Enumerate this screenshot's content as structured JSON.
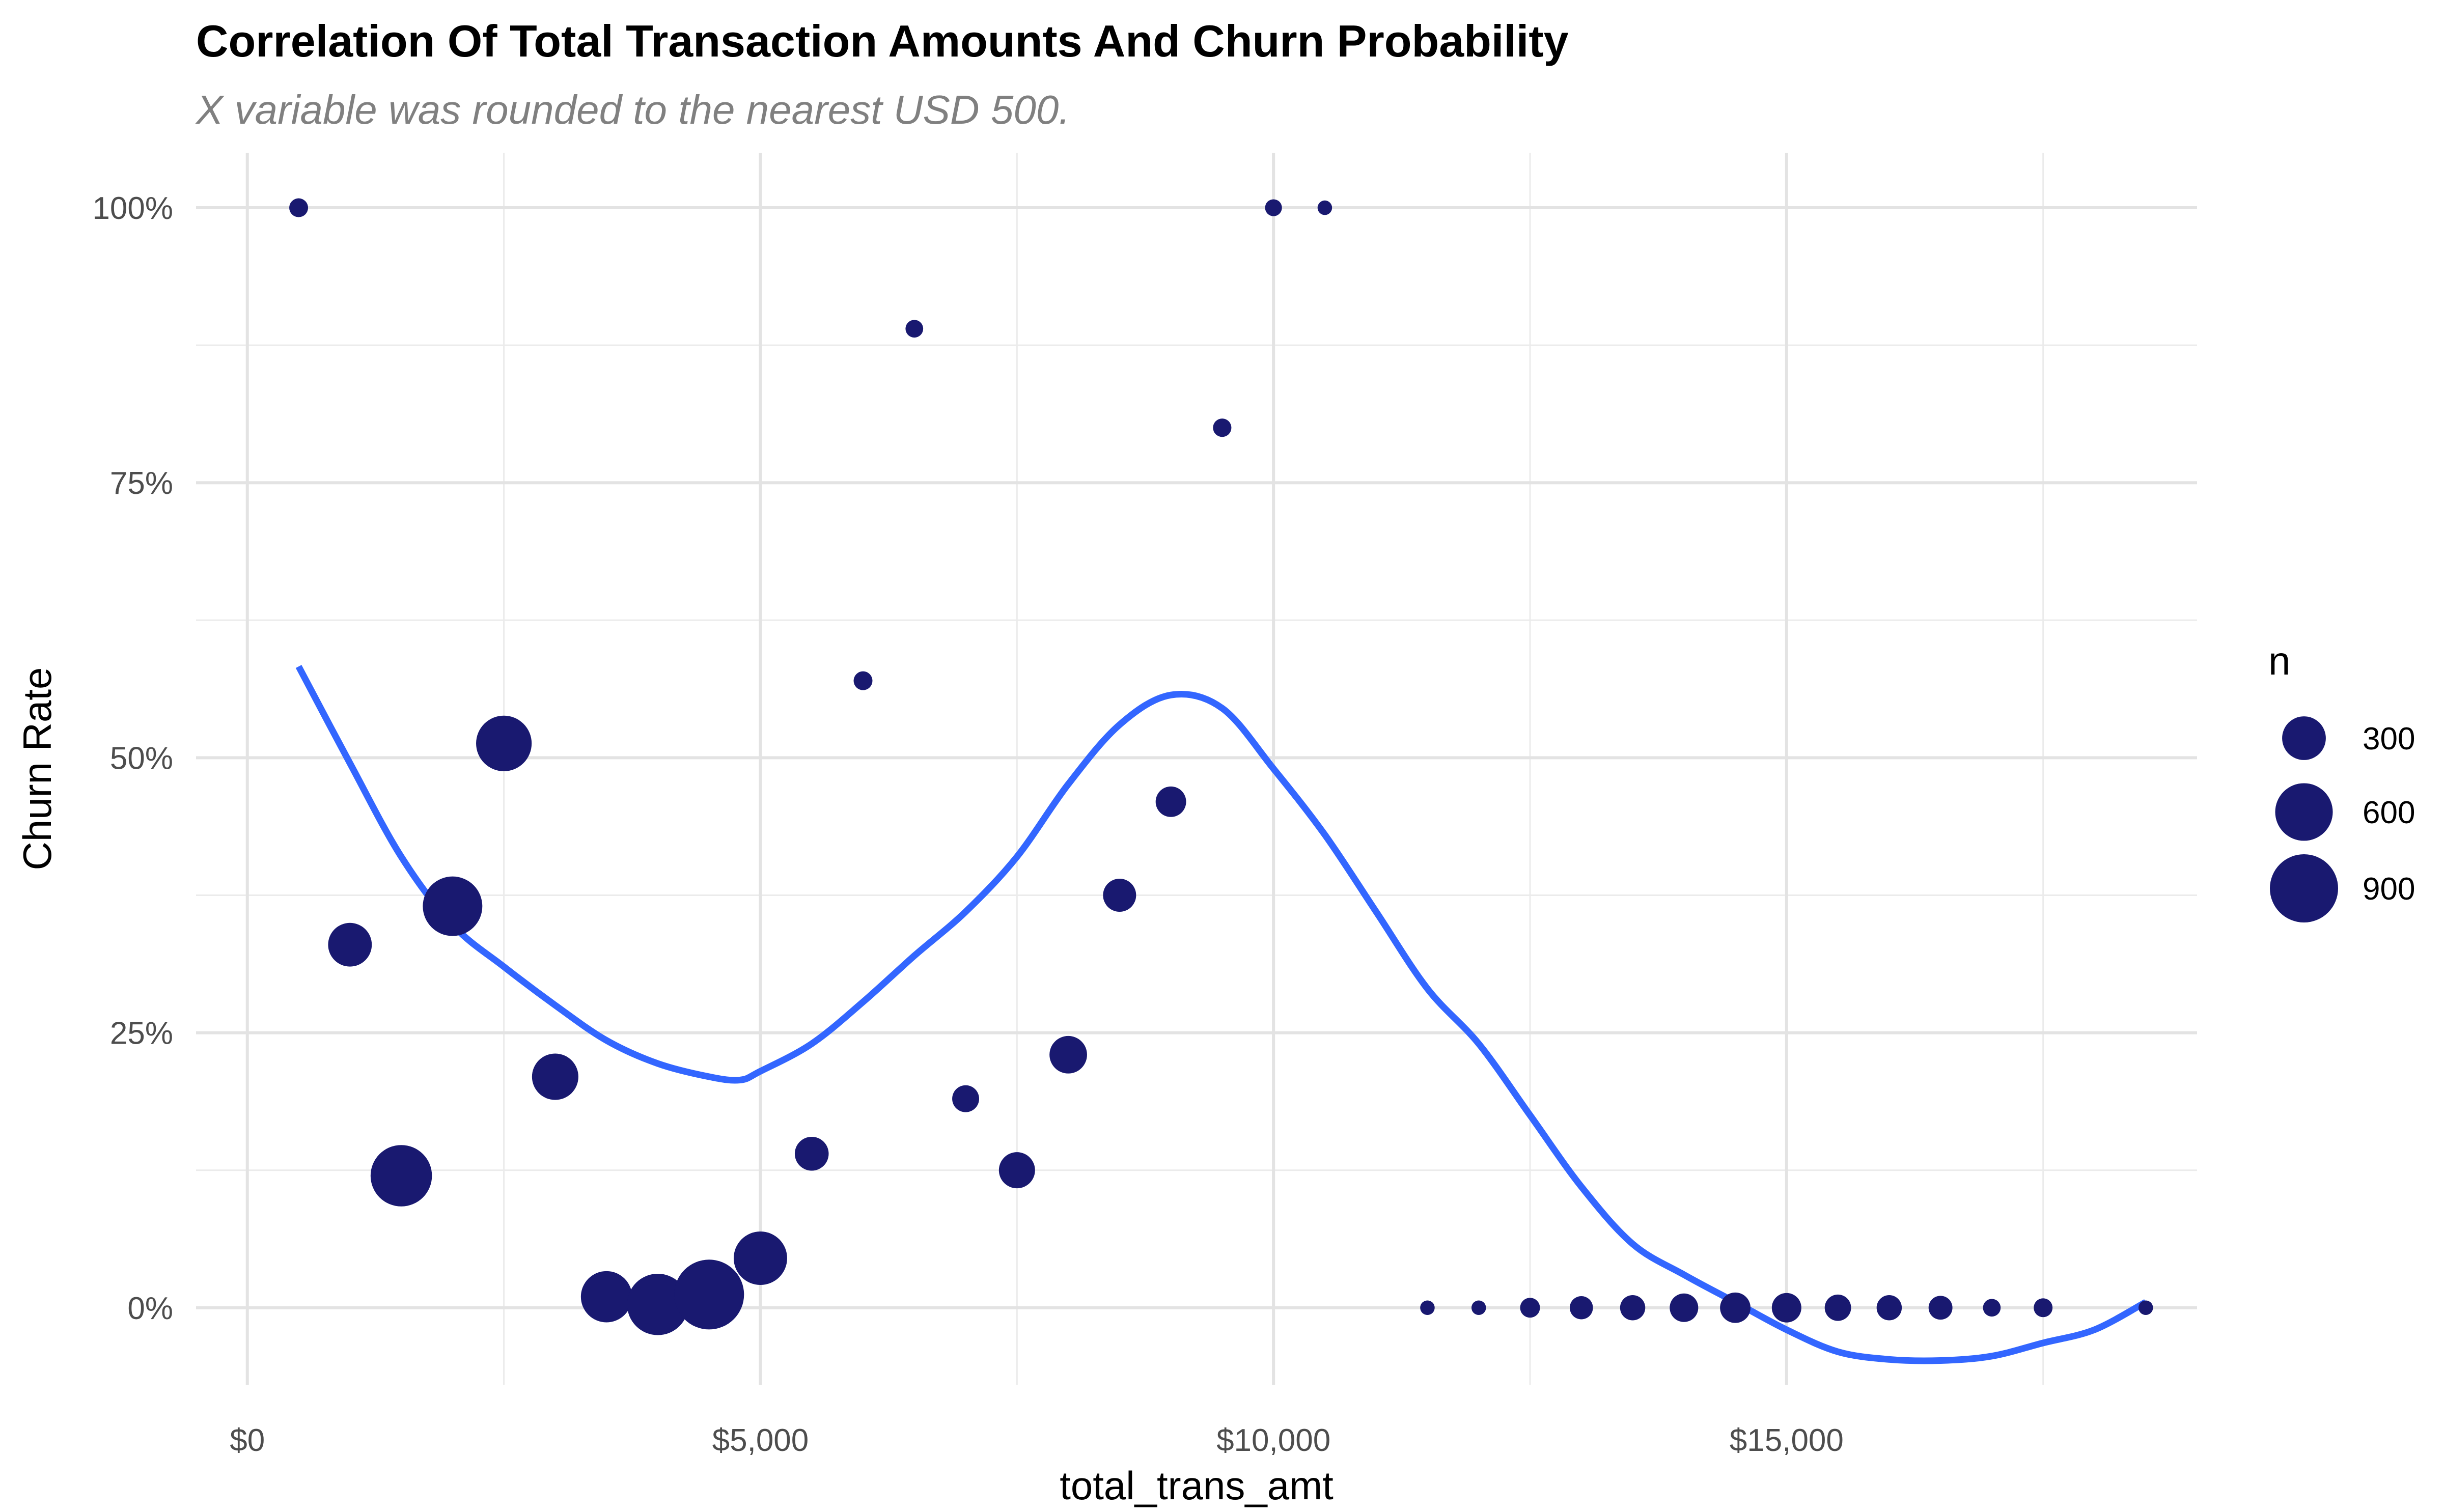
{
  "chart_data": {
    "type": "scatter",
    "title": "Correlation Of Total Transaction Amounts And Churn Probability",
    "subtitle": "X variable was rounded to the nearest USD 500.",
    "xlabel": "total_trans_amt",
    "ylabel": "Churn Rate",
    "xlim": [
      -500,
      19000
    ],
    "ylim": [
      -0.07,
      1.05
    ],
    "x_ticks": [
      0,
      5000,
      10000,
      15000
    ],
    "x_tick_labels": [
      "$0",
      "$5,000",
      "$10,000",
      "$15,000"
    ],
    "y_ticks": [
      0,
      0.25,
      0.5,
      0.75,
      1.0
    ],
    "y_tick_labels": [
      "0%",
      "25%",
      "50%",
      "75%",
      "100%"
    ],
    "grid": true,
    "point_color": "#191970",
    "smooth_color": "#3366FF",
    "size_legend": {
      "title": "n",
      "position": "right",
      "values": [
        300,
        600,
        900
      ],
      "labels": [
        "300",
        "600",
        "900"
      ]
    },
    "points": [
      {
        "x": 500,
        "y": 1.0,
        "n": 20
      },
      {
        "x": 1000,
        "y": 0.33,
        "n": 300
      },
      {
        "x": 1500,
        "y": 0.12,
        "n": 700
      },
      {
        "x": 2000,
        "y": 0.365,
        "n": 650
      },
      {
        "x": 2500,
        "y": 0.513,
        "n": 550
      },
      {
        "x": 3000,
        "y": 0.21,
        "n": 350
      },
      {
        "x": 3500,
        "y": 0.01,
        "n": 450
      },
      {
        "x": 4000,
        "y": 0.003,
        "n": 700
      },
      {
        "x": 4500,
        "y": 0.012,
        "n": 950
      },
      {
        "x": 5000,
        "y": 0.045,
        "n": 500
      },
      {
        "x": 5500,
        "y": 0.14,
        "n": 150
      },
      {
        "x": 6000,
        "y": 0.57,
        "n": 20
      },
      {
        "x": 6500,
        "y": 0.89,
        "n": 15
      },
      {
        "x": 7000,
        "y": 0.19,
        "n": 75
      },
      {
        "x": 7500,
        "y": 0.125,
        "n": 180
      },
      {
        "x": 8000,
        "y": 0.23,
        "n": 200
      },
      {
        "x": 8500,
        "y": 0.375,
        "n": 140
      },
      {
        "x": 9000,
        "y": 0.46,
        "n": 110
      },
      {
        "x": 9500,
        "y": 0.8,
        "n": 18
      },
      {
        "x": 10000,
        "y": 1.0,
        "n": 12
      },
      {
        "x": 10500,
        "y": 1.0,
        "n": 5
      },
      {
        "x": 11500,
        "y": 0.0,
        "n": 5
      },
      {
        "x": 12000,
        "y": 0.0,
        "n": 5
      },
      {
        "x": 12500,
        "y": 0.0,
        "n": 25
      },
      {
        "x": 13000,
        "y": 0.0,
        "n": 45
      },
      {
        "x": 13500,
        "y": 0.0,
        "n": 60
      },
      {
        "x": 14000,
        "y": 0.0,
        "n": 90
      },
      {
        "x": 14500,
        "y": 0.0,
        "n": 110
      },
      {
        "x": 15000,
        "y": 0.0,
        "n": 100
      },
      {
        "x": 15500,
        "y": 0.0,
        "n": 70
      },
      {
        "x": 16000,
        "y": 0.0,
        "n": 60
      },
      {
        "x": 16500,
        "y": 0.0,
        "n": 50
      },
      {
        "x": 17000,
        "y": 0.0,
        "n": 15
      },
      {
        "x": 17500,
        "y": 0.0,
        "n": 20
      },
      {
        "x": 18500,
        "y": 0.0,
        "n": 5
      }
    ],
    "smooth_line": {
      "x": [
        500,
        1000,
        1500,
        2000,
        2500,
        3000,
        3500,
        4000,
        4500,
        4800,
        5000,
        5500,
        6000,
        6500,
        7000,
        7500,
        8000,
        8500,
        9000,
        9500,
        10000,
        10500,
        11000,
        11500,
        12000,
        12500,
        13000,
        13500,
        14000,
        14500,
        15000,
        15500,
        16000,
        16500,
        17000,
        17500,
        18000,
        18500
      ],
      "y": [
        0.583,
        0.495,
        0.41,
        0.348,
        0.31,
        0.275,
        0.243,
        0.222,
        0.21,
        0.207,
        0.215,
        0.24,
        0.278,
        0.32,
        0.36,
        0.41,
        0.476,
        0.53,
        0.557,
        0.545,
        0.49,
        0.43,
        0.36,
        0.29,
        0.24,
        0.175,
        0.11,
        0.058,
        0.03,
        0.005,
        -0.02,
        -0.04,
        -0.047,
        -0.048,
        -0.044,
        -0.032,
        -0.02,
        0.005
      ]
    }
  }
}
